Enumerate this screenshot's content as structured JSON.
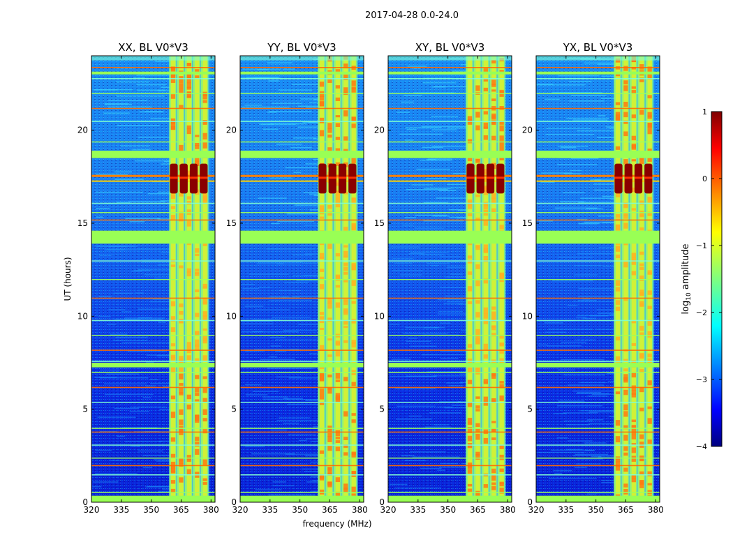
{
  "figure_title": "2017-04-28 0.0-24.0",
  "colorbar": {
    "label_prefix": "log",
    "label_sub": "10",
    "label_suffix": " amplitude",
    "range": [
      -4,
      1
    ],
    "ticks": [
      "1",
      "0",
      "−1",
      "−2",
      "−3",
      "−4"
    ],
    "colormap": "jet"
  },
  "chart_data": [
    {
      "type": "heatmap",
      "title": "XX, BL V0*V3",
      "xlabel": "",
      "ylabel": "UT (hours)",
      "xlim": [
        320,
        382
      ],
      "ylim": [
        0,
        24
      ],
      "xticks": [
        "320",
        "335",
        "350",
        "365",
        "380"
      ],
      "yticks": [
        "0",
        "5",
        "10",
        "15",
        "20"
      ],
      "rfi_band_mhz": [
        359,
        379
      ],
      "bright_burst_hours": [
        16.6,
        18.2
      ]
    },
    {
      "type": "heatmap",
      "title": "YY, BL V0*V3",
      "xlabel": "frequency (MHz)",
      "ylabel": "",
      "xlim": [
        320,
        382
      ],
      "ylim": [
        0,
        24
      ],
      "xticks": [
        "320",
        "335",
        "350",
        "365",
        "380"
      ],
      "yticks": [
        "0",
        "5",
        "10",
        "15",
        "20"
      ],
      "rfi_band_mhz": [
        359,
        379
      ],
      "bright_burst_hours": [
        16.6,
        18.2
      ]
    },
    {
      "type": "heatmap",
      "title": "XY, BL V0*V3",
      "xlabel": "",
      "ylabel": "",
      "xlim": [
        320,
        382
      ],
      "ylim": [
        0,
        24
      ],
      "xticks": [
        "320",
        "335",
        "350",
        "365",
        "380"
      ],
      "yticks": [
        "0",
        "5",
        "10",
        "15",
        "20"
      ],
      "rfi_band_mhz": [
        359,
        379
      ],
      "bright_burst_hours": [
        16.6,
        18.2
      ]
    },
    {
      "type": "heatmap",
      "title": "YX, BL V0*V3",
      "xlabel": "",
      "ylabel": "",
      "xlim": [
        320,
        382
      ],
      "ylim": [
        0,
        24
      ],
      "xticks": [
        "320",
        "335",
        "350",
        "365",
        "380"
      ],
      "yticks": [
        "0",
        "5",
        "10",
        "15",
        "20"
      ],
      "rfi_band_mhz": [
        359,
        379
      ],
      "bright_burst_hours": [
        16.6,
        18.2
      ]
    }
  ]
}
